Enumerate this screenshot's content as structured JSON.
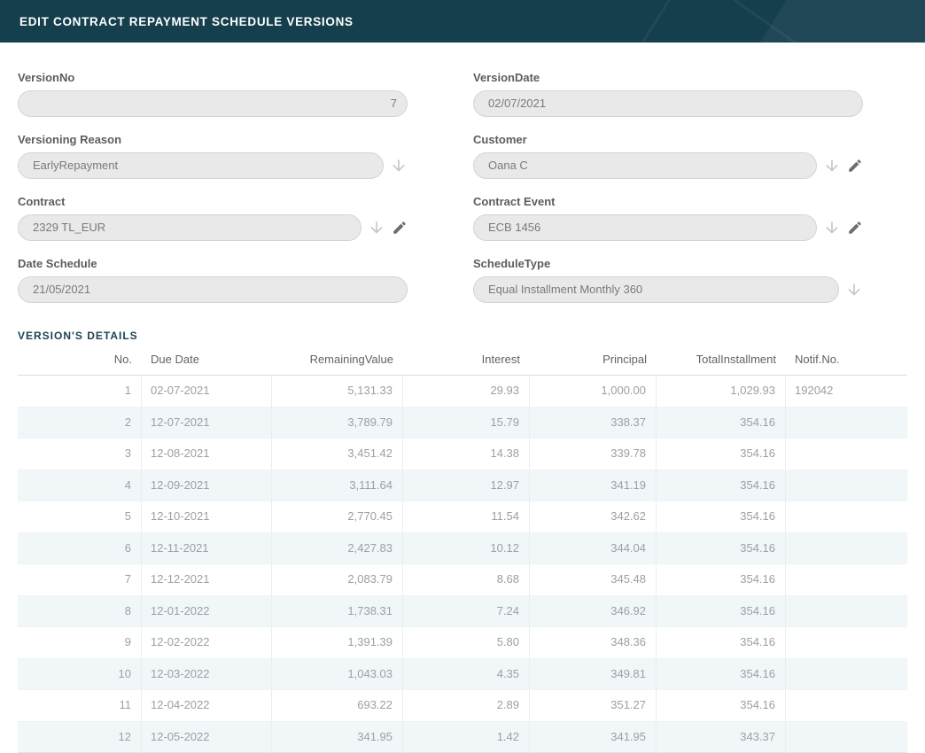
{
  "header": {
    "title": "EDIT CONTRACT REPAYMENT SCHEDULE VERSIONS"
  },
  "colors": {
    "header_bg": "#163f4d",
    "section_title": "#1b4454",
    "field_bg": "#e9e9e9",
    "alt_row_bg": "#f1f6f9",
    "cell_text": "#9aa0a6"
  },
  "icons": {
    "dropdown": "arrow-down-icon",
    "edit": "pencil-icon"
  },
  "form": {
    "fields": [
      {
        "label": "VersionNo",
        "value": "7"
      },
      {
        "label": "VersionDate",
        "value": "02/07/2021"
      },
      {
        "label": "Versioning Reason",
        "value": "EarlyRepayment"
      },
      {
        "label": "Customer",
        "value": "Oana C"
      },
      {
        "label": "Contract",
        "value": "2329 TL_EUR"
      },
      {
        "label": "Contract Event",
        "value": "ECB 1456"
      },
      {
        "label": "Date Schedule",
        "value": "21/05/2021"
      },
      {
        "label": "ScheduleType",
        "value": "Equal Installment Monthly 360"
      }
    ]
  },
  "details": {
    "section_title": "VERSION'S DETAILS",
    "columns": [
      "No.",
      "Due Date",
      "RemainingValue",
      "Interest",
      "Principal",
      "TotalInstallment",
      "Notif.No."
    ],
    "rows": [
      [
        "1",
        "02-07-2021",
        "5,131.33",
        "29.93",
        "1,000.00",
        "1,029.93",
        "192042"
      ],
      [
        "2",
        "12-07-2021",
        "3,789.79",
        "15.79",
        "338.37",
        "354.16",
        ""
      ],
      [
        "3",
        "12-08-2021",
        "3,451.42",
        "14.38",
        "339.78",
        "354.16",
        ""
      ],
      [
        "4",
        "12-09-2021",
        "3,111.64",
        "12.97",
        "341.19",
        "354.16",
        ""
      ],
      [
        "5",
        "12-10-2021",
        "2,770.45",
        "11.54",
        "342.62",
        "354.16",
        ""
      ],
      [
        "6",
        "12-11-2021",
        "2,427.83",
        "10.12",
        "344.04",
        "354.16",
        ""
      ],
      [
        "7",
        "12-12-2021",
        "2,083.79",
        "8.68",
        "345.48",
        "354.16",
        ""
      ],
      [
        "8",
        "12-01-2022",
        "1,738.31",
        "7.24",
        "346.92",
        "354.16",
        ""
      ],
      [
        "9",
        "12-02-2022",
        "1,391.39",
        "5.80",
        "348.36",
        "354.16",
        ""
      ],
      [
        "10",
        "12-03-2022",
        "1,043.03",
        "4.35",
        "349.81",
        "354.16",
        ""
      ],
      [
        "11",
        "12-04-2022",
        "693.22",
        "2.89",
        "351.27",
        "354.16",
        ""
      ],
      [
        "12",
        "12-05-2022",
        "341.95",
        "1.42",
        "341.95",
        "343.37",
        ""
      ]
    ]
  }
}
